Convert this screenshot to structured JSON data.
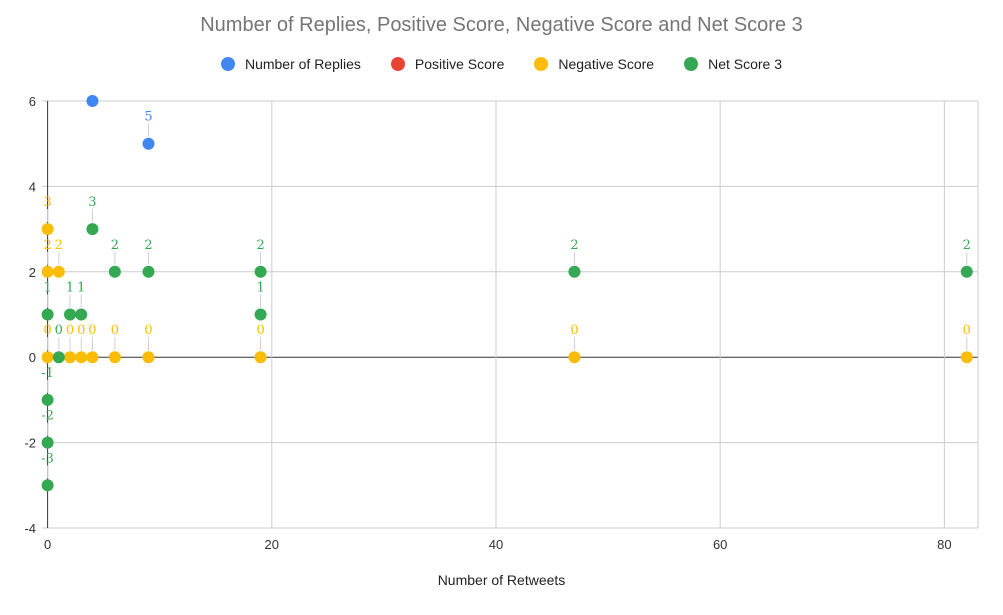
{
  "chart_data": {
    "type": "scatter",
    "title": "Number of Replies, Positive Score, Negative Score and Net Score 3",
    "xlabel": "Number of Retweets",
    "ylabel": "",
    "xlim": [
      -0.5,
      83
    ],
    "ylim": [
      -4,
      6
    ],
    "xticks": [
      0,
      20,
      40,
      60,
      80
    ],
    "yticks": [
      -4,
      -2,
      0,
      2,
      4,
      6
    ],
    "grid": true,
    "legend": "top",
    "series": [
      {
        "name": "Number of Replies",
        "color": "#4285f4",
        "points": [
          [
            4,
            6
          ],
          [
            9,
            5
          ]
        ],
        "labels": [
          "",
          "5"
        ]
      },
      {
        "name": "Positive Score",
        "color": "#ea4335",
        "points": [],
        "labels": []
      },
      {
        "name": "Negative Score",
        "color": "#fbbc04",
        "points": [
          [
            0,
            3
          ],
          [
            0,
            2
          ],
          [
            0,
            0
          ],
          [
            1,
            2
          ],
          [
            2,
            0
          ],
          [
            3,
            0
          ],
          [
            4,
            0
          ],
          [
            6,
            0
          ],
          [
            9,
            0
          ],
          [
            19,
            0
          ],
          [
            47,
            0
          ],
          [
            82,
            0
          ]
        ],
        "labels": [
          "3",
          "2",
          "0",
          "2",
          "0",
          "0",
          "0",
          "0",
          "0",
          "0",
          "0",
          "0"
        ]
      },
      {
        "name": "Net Score 3",
        "color": "#34a853",
        "points": [
          [
            0,
            1
          ],
          [
            0,
            -1
          ],
          [
            0,
            -2
          ],
          [
            0,
            -3
          ],
          [
            1,
            0
          ],
          [
            2,
            1
          ],
          [
            3,
            1
          ],
          [
            4,
            3
          ],
          [
            6,
            2
          ],
          [
            9,
            2
          ],
          [
            19,
            2
          ],
          [
            19,
            1
          ],
          [
            47,
            2
          ],
          [
            82,
            2
          ]
        ],
        "labels": [
          "1",
          "-1",
          "-2",
          "-3",
          "0",
          "1",
          "1",
          "3",
          "2",
          "2",
          "2",
          "1",
          "2",
          "2"
        ]
      }
    ]
  }
}
